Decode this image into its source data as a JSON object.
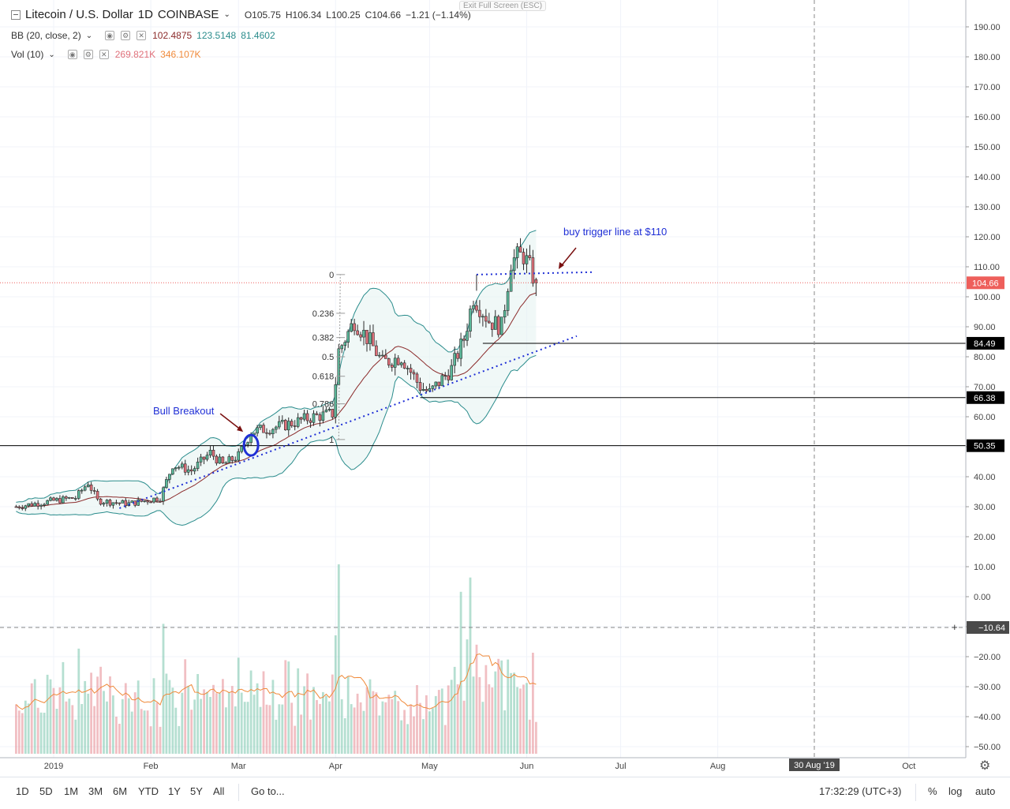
{
  "header": {
    "collapse_icon": "minus-square-icon",
    "title": "Litecoin / U.S. Dollar",
    "interval": "1D",
    "exchange": "COINBASE",
    "ohlc": {
      "o": "O105.75",
      "h": "H106.34",
      "l": "L100.25",
      "c": "C104.66",
      "chg": "−1.21 (−1.14%)"
    },
    "bb_label": "BB (20, close, 2)",
    "bb_values": [
      "102.4875",
      "123.5148",
      "81.4602"
    ],
    "vol_label": "Vol (10)",
    "vol_values": [
      "269.821K",
      "346.107K"
    ],
    "exit_fullscreen": "Exit Full Screen (ESC)"
  },
  "colors": {
    "up": "#5bb89a",
    "down": "#e0707a",
    "bb_band": "#2a8c8c",
    "bb_basis": "#8b2b2b",
    "trend": "#1f2fd6",
    "annot": "#1f2fd6",
    "price_label": "#ee5f5b"
  },
  "annotations": {
    "bull_breakout": "Bull Breakout",
    "buy_trigger": "buy trigger line at $110"
  },
  "fib_levels": [
    {
      "label": "0",
      "value": 107.4
    },
    {
      "label": "0.236",
      "value": 94.5
    },
    {
      "label": "0.382",
      "value": 86.4
    },
    {
      "label": "0.5",
      "value": 80.0
    },
    {
      "label": "0.618",
      "value": 73.5
    },
    {
      "label": "0.786",
      "value": 64.3
    },
    {
      "label": "1",
      "value": 52.4
    }
  ],
  "horizontal_levels": [
    {
      "label": "84.49",
      "value": 84.49
    },
    {
      "label": "66.38",
      "value": 66.38
    },
    {
      "label": "50.35",
      "value": 50.35
    }
  ],
  "price_label": "104.66",
  "crosshair_label": "−10.64",
  "crosshair_date": "30 Aug '19",
  "chart_data": {
    "type": "candlestick",
    "title": "Litecoin / U.S. Dollar",
    "y_ticks": [
      "190.00",
      "180.00",
      "170.00",
      "160.00",
      "150.00",
      "140.00",
      "130.00",
      "120.00",
      "110.00",
      "100.00",
      "90.00",
      "80.00",
      "70.00",
      "60.00",
      "50.00",
      "40.00",
      "30.00",
      "20.00",
      "10.00",
      "0.00",
      "−10.00",
      "−20.00",
      "−30.00",
      "−40.00",
      "−50.00"
    ],
    "x_ticks": [
      "2019",
      "Feb",
      "Mar",
      "Apr",
      "May",
      "Jun",
      "Jul",
      "Aug",
      "Oct"
    ],
    "price_range": [
      -54,
      195
    ],
    "series": [
      {
        "name": "price",
        "points": [
          {
            "date": "2018-12-20",
            "close": 30
          },
          {
            "date": "2019-01-01",
            "close": 32
          },
          {
            "date": "2019-01-08",
            "close": 33
          },
          {
            "date": "2019-01-12",
            "close": 38
          },
          {
            "date": "2019-01-15",
            "close": 32
          },
          {
            "date": "2019-01-25",
            "close": 31
          },
          {
            "date": "2019-02-04",
            "close": 33
          },
          {
            "date": "2019-02-08",
            "close": 44
          },
          {
            "date": "2019-02-14",
            "close": 42
          },
          {
            "date": "2019-02-20",
            "close": 48
          },
          {
            "date": "2019-02-24",
            "close": 44
          },
          {
            "date": "2019-03-01",
            "close": 47
          },
          {
            "date": "2019-03-05",
            "close": 55
          },
          {
            "date": "2019-03-15",
            "close": 57
          },
          {
            "date": "2019-03-25",
            "close": 60
          },
          {
            "date": "2019-03-31",
            "close": 61
          },
          {
            "date": "2019-04-02",
            "close": 82
          },
          {
            "date": "2019-04-07",
            "close": 92
          },
          {
            "date": "2019-04-12",
            "close": 85
          },
          {
            "date": "2019-04-16",
            "close": 78
          },
          {
            "date": "2019-04-22",
            "close": 80
          },
          {
            "date": "2019-04-28",
            "close": 70
          },
          {
            "date": "2019-05-01",
            "close": 68
          },
          {
            "date": "2019-05-08",
            "close": 76
          },
          {
            "date": "2019-05-12",
            "close": 86
          },
          {
            "date": "2019-05-15",
            "close": 100
          },
          {
            "date": "2019-05-20",
            "close": 92
          },
          {
            "date": "2019-05-24",
            "close": 90
          },
          {
            "date": "2019-05-27",
            "close": 112
          },
          {
            "date": "2019-05-31",
            "close": 114
          },
          {
            "date": "2019-06-04",
            "close": 104.66
          }
        ]
      },
      {
        "name": "volume",
        "unit": "K",
        "max_label": "346.107K"
      }
    ]
  },
  "bottom_bar": {
    "ranges": [
      "1D",
      "5D",
      "1M",
      "3M",
      "6M",
      "YTD",
      "1Y",
      "5Y",
      "All"
    ],
    "goto": "Go to...",
    "time": "17:32:29 (UTC+3)",
    "percent": "%",
    "log": "log",
    "auto": "auto"
  },
  "settings_icon": "gear-icon"
}
